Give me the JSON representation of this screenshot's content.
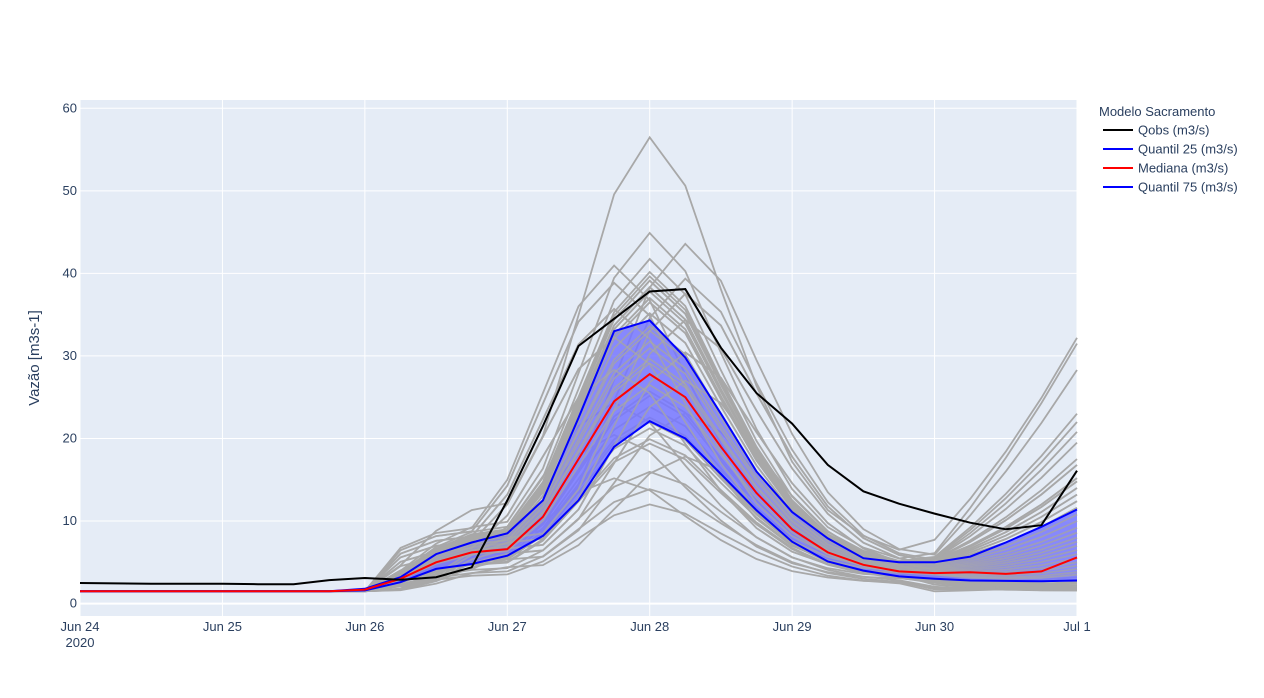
{
  "chart_data": {
    "type": "line",
    "title": "",
    "xlabel": "",
    "ylabel": "Vazão [m3s-1]",
    "x_tick_labels": [
      "Jun 24",
      "Jun 25",
      "Jun 26",
      "Jun 27",
      "Jun 28",
      "Jun 29",
      "Jun 30",
      "Jul 1"
    ],
    "x_year_label": "2020",
    "y_tick_labels": [
      "0",
      "10",
      "20",
      "30",
      "40",
      "50",
      "60"
    ],
    "xlim": [
      "2020-06-24",
      "2020-07-01"
    ],
    "ylim": [
      -1.5,
      61
    ],
    "grid": true,
    "legend_title": "Modelo Sacramento",
    "legend_position": "right",
    "colors": {
      "background": "#e5ecf6",
      "grid": "#ffffff",
      "ensemble": "#a8a8a8",
      "fill": "#7777ff",
      "qobs": "#000000",
      "quantile": "#0000ff",
      "median": "#ff0000"
    },
    "x": [
      "2020-06-24",
      "2020-06-24 06:00",
      "2020-06-24 12:00",
      "2020-06-24 18:00",
      "2020-06-25",
      "2020-06-25 06:00",
      "2020-06-25 12:00",
      "2020-06-25 18:00",
      "2020-06-26",
      "2020-06-26 06:00",
      "2020-06-26 12:00",
      "2020-06-26 18:00",
      "2020-06-27",
      "2020-06-27 06:00",
      "2020-06-27 12:00",
      "2020-06-27 18:00",
      "2020-06-28",
      "2020-06-28 06:00",
      "2020-06-28 12:00",
      "2020-06-28 18:00",
      "2020-06-29",
      "2020-06-29 06:00",
      "2020-06-29 12:00",
      "2020-06-29 18:00",
      "2020-06-30",
      "2020-06-30 06:00",
      "2020-06-30 12:00",
      "2020-06-30 18:00",
      "2020-07-01"
    ],
    "series": [
      {
        "name": "Qobs (m3/s)",
        "role": "qobs",
        "values": [
          2.5,
          2.45,
          2.4,
          2.4,
          2.4,
          2.35,
          2.35,
          2.85,
          3.1,
          2.9,
          3.2,
          4.4,
          12.5,
          21.5,
          31.2,
          34.5,
          37.8,
          38.1,
          31.0,
          25.5,
          21.8,
          16.8,
          13.6,
          12.1,
          10.9,
          9.8,
          9.0,
          9.5,
          16.1
        ]
      },
      {
        "name": "Quantil 25 (m3/s)",
        "role": "q25",
        "values": [
          1.5,
          1.5,
          1.5,
          1.5,
          1.5,
          1.5,
          1.5,
          1.5,
          1.6,
          2.6,
          4.2,
          4.8,
          5.8,
          8.2,
          12.5,
          19.0,
          22.1,
          20.0,
          15.7,
          11.3,
          7.5,
          5.1,
          4.0,
          3.3,
          3.0,
          2.8,
          2.75,
          2.7,
          2.8
        ]
      },
      {
        "name": "Mediana (m3/s)",
        "role": "median",
        "values": [
          1.5,
          1.5,
          1.5,
          1.5,
          1.5,
          1.5,
          1.5,
          1.5,
          1.7,
          3.0,
          5.0,
          6.2,
          6.6,
          10.5,
          17.5,
          24.5,
          27.8,
          25.0,
          19.0,
          13.4,
          9.0,
          6.2,
          4.7,
          3.9,
          3.7,
          3.8,
          3.6,
          3.9,
          5.6
        ]
      },
      {
        "name": "Quantil 75 (m3/s)",
        "role": "q75",
        "values": [
          1.5,
          1.5,
          1.5,
          1.5,
          1.5,
          1.5,
          1.5,
          1.5,
          1.8,
          3.2,
          6.0,
          7.4,
          8.5,
          12.5,
          22.5,
          33.0,
          34.3,
          29.8,
          23.0,
          16.0,
          11.1,
          7.9,
          5.5,
          5.0,
          5.0,
          5.7,
          7.4,
          9.3,
          11.4
        ]
      }
    ],
    "ensemble_peak_factors": [
      2.09,
      1.65,
      1.6,
      1.53,
      1.5,
      1.47,
      1.45,
      1.44,
      1.43,
      1.42,
      1.4,
      1.38,
      1.37,
      1.35,
      1.33,
      1.3,
      1.28,
      1.25,
      1.22,
      1.2,
      1.17,
      1.15,
      1.12,
      1.1,
      1.07,
      1.05,
      1.02,
      1.0,
      0.97,
      0.95,
      0.92,
      0.9,
      0.87,
      0.85,
      0.82,
      0.8,
      0.78,
      0.75,
      0.72,
      0.7,
      0.68,
      0.62,
      0.55,
      0.52,
      0.47,
      0.4
    ],
    "ensemble_end_values": [
      32.2,
      31.5,
      28.3,
      23.0,
      22.0,
      20.8,
      19.5,
      17.5,
      16.8,
      15.2,
      14.8,
      14.0,
      13.2,
      12.4,
      11.6,
      10.8,
      10.0,
      9.2,
      8.6,
      8.0,
      7.5,
      7.0,
      6.5,
      6.0,
      5.5,
      5.0,
      4.6,
      4.2,
      3.8,
      3.5,
      3.2,
      2.9,
      2.6,
      2.4,
      2.2,
      2.0,
      1.9,
      1.8,
      1.7,
      1.7,
      1.6,
      1.6,
      1.6,
      1.7,
      1.8,
      2.0
    ],
    "ensemble_timing_shifts": [
      0,
      0,
      1,
      0,
      -1,
      0,
      0,
      1,
      0,
      -1,
      0,
      0,
      1,
      0,
      0,
      -1,
      0,
      1,
      0,
      0,
      -1,
      0,
      0,
      1,
      0,
      0,
      -1,
      0,
      1,
      0,
      0,
      0,
      -1,
      0,
      1,
      0,
      0,
      0,
      -1,
      0,
      0,
      1,
      0,
      -1,
      0,
      0
    ]
  }
}
